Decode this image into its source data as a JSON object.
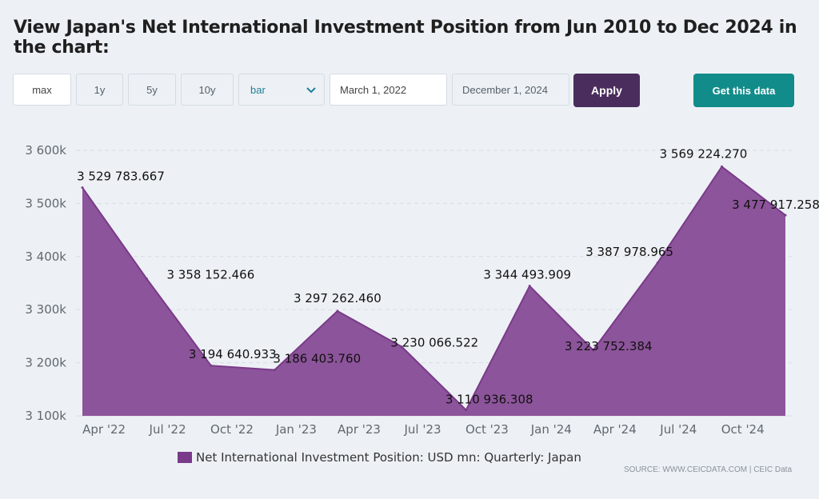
{
  "title": "View Japan's Net International Investment Position from Jun 2010 to Dec 2024 in the chart:",
  "controls": {
    "range_buttons": [
      "max",
      "1y",
      "5y",
      "10y"
    ],
    "chart_type_value": "bar",
    "start_date": "March 1, 2022",
    "end_date": "December 1, 2024",
    "apply_label": "Apply",
    "get_data_label": "Get this data"
  },
  "legend_label": "Net International Investment Position: USD mn: Quarterly: Japan",
  "source_text": "SOURCE: WWW.CEICDATA.COM | CEIC Data",
  "colors": {
    "area_fill": "#8c549a",
    "area_stroke": "#7a3a8a",
    "apply_bg": "#4a2d5c",
    "get_data_bg": "#128c8a"
  },
  "chart_data": {
    "type": "area",
    "x": [
      "Mar 2022",
      "Jun 2022",
      "Sep 2022",
      "Dec 2022",
      "Mar 2023",
      "Jun 2023",
      "Sep 2023",
      "Dec 2023",
      "Mar 2024",
      "Jun 2024",
      "Sep 2024",
      "Dec 2024"
    ],
    "series": [
      {
        "name": "Net International Investment Position: USD mn: Quarterly: Japan",
        "values": [
          3529783.667,
          3358152.466,
          3194640.933,
          3186403.76,
          3297262.46,
          3230066.522,
          3110936.308,
          3344493.909,
          3223752.384,
          3387978.965,
          3569224.27,
          3477917.258
        ],
        "labels": [
          "3 529 783.667",
          "3 358 152.466",
          "3 194 640.933",
          "3 186 403.760",
          "3 297 262.460",
          "3 230 066.522",
          "3 110 936.308",
          "3 344 493.909",
          "3 223 752.384",
          "3 387 978.965",
          "3 569 224.270",
          "3 477 917.258"
        ]
      }
    ],
    "xticks": [
      "Apr '22",
      "Jul '22",
      "Oct '22",
      "Jan '23",
      "Apr '23",
      "Jul '23",
      "Oct '23",
      "Jan '24",
      "Apr '24",
      "Jul '24",
      "Oct '24"
    ],
    "xtick_dates": [
      "2022-04-01",
      "2022-07-01",
      "2022-10-01",
      "2023-01-01",
      "2023-04-01",
      "2023-07-01",
      "2023-10-01",
      "2024-01-01",
      "2024-04-01",
      "2024-07-01",
      "2024-10-01"
    ],
    "yticks": [
      3100000,
      3200000,
      3300000,
      3400000,
      3500000,
      3600000
    ],
    "ytick_labels": [
      "3 100k",
      "3 200k",
      "3 300k",
      "3 400k",
      "3 500k",
      "3 600k"
    ],
    "ylim": [
      3100000,
      3600000
    ],
    "grid": true,
    "legend_position": "bottom-center"
  }
}
